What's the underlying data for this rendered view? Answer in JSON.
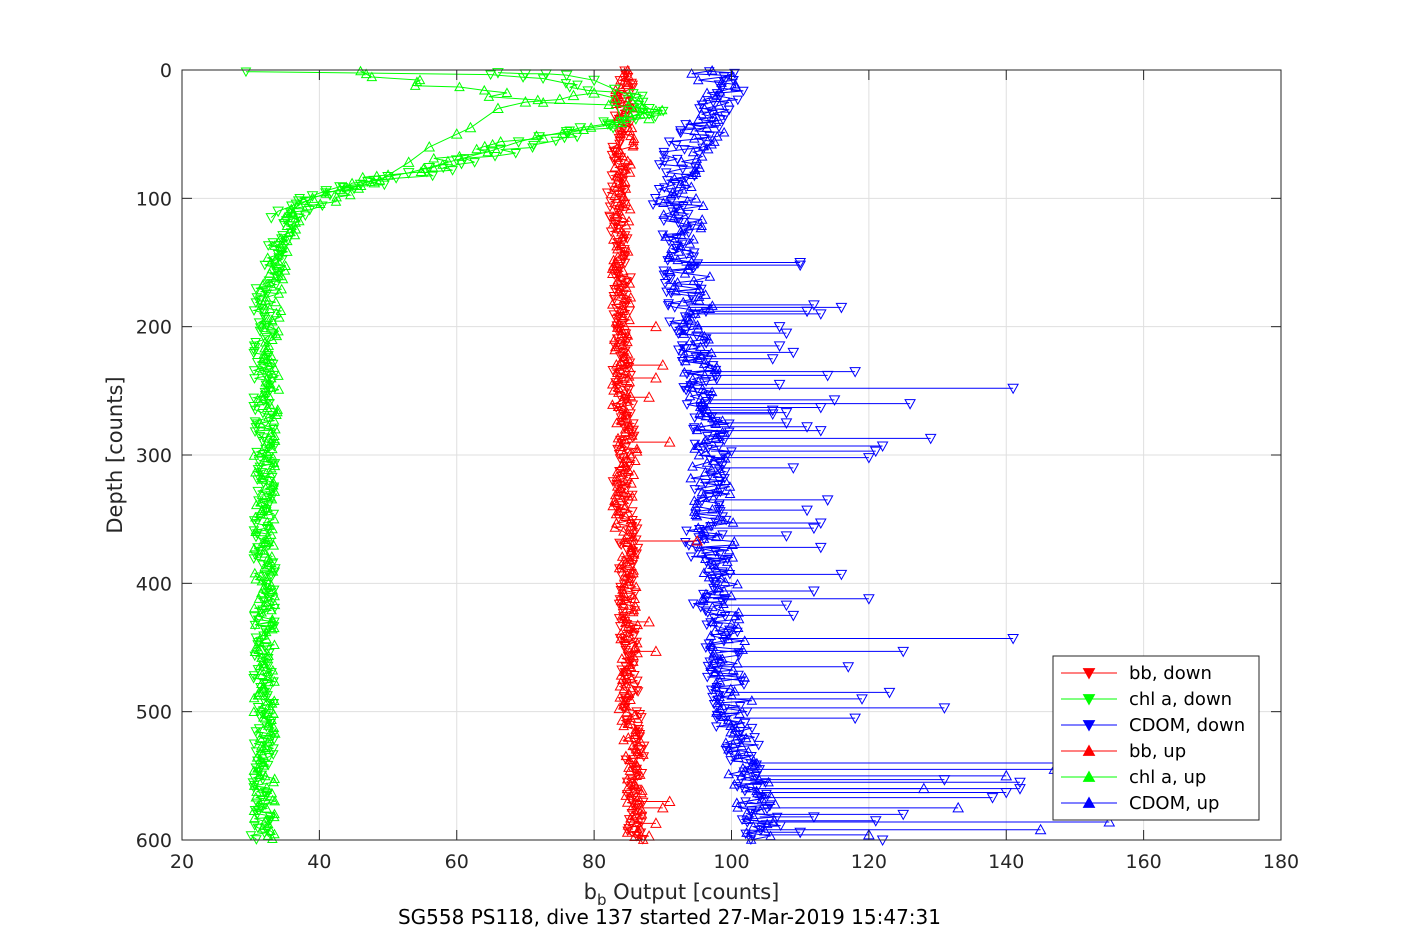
{
  "chart_data": {
    "type": "line",
    "title": "",
    "footer": "SG558 PS118, dive 137 started 27-Mar-2019 15:47:31",
    "xlabel_main": "b",
    "xlabel_sub": "b",
    "xlabel_rest": " Output [counts]",
    "ylabel": "Depth [counts]",
    "xlim": [
      20,
      180
    ],
    "ylim": [
      0,
      600
    ],
    "y_reversed": true,
    "grid": true,
    "x_ticks": [
      "20",
      "40",
      "60",
      "80",
      "100",
      "120",
      "140",
      "160",
      "180"
    ],
    "y_ticks": [
      "0",
      "100",
      "200",
      "300",
      "400",
      "500",
      "600"
    ],
    "legend_position": "bottom-right",
    "colors": {
      "bb": "#ff0000",
      "chl": "#00ff00",
      "cdom": "#0000ff",
      "axis": "#262626",
      "grid": "#dfdfdf"
    },
    "series": [
      {
        "name": "bb, down",
        "color": "#ff0000",
        "marker": "triangle-down",
        "points": [
          [
            84,
            0
          ],
          [
            85,
            10
          ],
          [
            84,
            25
          ],
          [
            84,
            40
          ],
          [
            83,
            60
          ],
          [
            84,
            80
          ],
          [
            83,
            100
          ],
          [
            84,
            130
          ],
          [
            84,
            160
          ],
          [
            84,
            200
          ],
          [
            84,
            240
          ],
          [
            85,
            280
          ],
          [
            84,
            320
          ],
          [
            85,
            360
          ],
          [
            85,
            400
          ],
          [
            85,
            440
          ],
          [
            85,
            480
          ],
          [
            86,
            520
          ],
          [
            86,
            560
          ],
          [
            86,
            600
          ]
        ]
      },
      {
        "name": "chl a, down",
        "color": "#00ff00",
        "marker": "triangle-down",
        "points": [
          [
            66,
            2
          ],
          [
            86,
            20
          ],
          [
            88,
            35
          ],
          [
            84,
            40
          ],
          [
            75,
            50
          ],
          [
            65,
            65
          ],
          [
            55,
            80
          ],
          [
            45,
            90
          ],
          [
            39,
            100
          ],
          [
            35,
            120
          ],
          [
            33,
            150
          ],
          [
            32,
            180
          ],
          [
            32,
            220
          ],
          [
            32,
            260
          ],
          [
            32,
            300
          ],
          [
            32,
            350
          ],
          [
            32,
            400
          ],
          [
            32,
            450
          ],
          [
            32,
            500
          ],
          [
            32,
            550
          ],
          [
            31,
            600
          ]
        ]
      },
      {
        "name": "CDOM, down",
        "color": "#0000ff",
        "marker": "triangle-down",
        "points": [
          [
            98,
            0
          ],
          [
            99,
            15
          ],
          [
            96,
            40
          ],
          [
            93,
            60
          ],
          [
            92,
            80
          ],
          [
            91,
            100
          ],
          [
            92,
            130
          ],
          [
            93,
            160
          ],
          [
            94,
            200
          ],
          [
            95,
            240
          ],
          [
            97,
            280
          ],
          [
            97,
            320
          ],
          [
            96,
            360
          ],
          [
            97,
            400
          ],
          [
            98,
            440
          ],
          [
            99,
            480
          ],
          [
            101,
            520
          ],
          [
            103,
            560
          ],
          [
            105,
            600
          ]
        ]
      },
      {
        "name": "bb, up",
        "color": "#ff0000",
        "marker": "triangle-up",
        "points": [
          [
            84,
            0
          ],
          [
            84,
            20
          ],
          [
            85,
            40
          ],
          [
            84,
            70
          ],
          [
            84,
            100
          ],
          [
            84,
            140
          ],
          [
            84,
            180
          ],
          [
            84,
            220
          ],
          [
            84,
            260
          ],
          [
            85,
            300
          ],
          [
            84,
            340
          ],
          [
            85,
            380
          ],
          [
            85,
            420
          ],
          [
            85,
            460
          ],
          [
            85,
            500
          ],
          [
            86,
            540
          ],
          [
            86,
            580
          ],
          [
            86,
            600
          ]
        ]
      },
      {
        "name": "chl a, up",
        "color": "#00ff00",
        "marker": "triangle-up",
        "points": [
          [
            46,
            0
          ],
          [
            55,
            10
          ],
          [
            62,
            15
          ],
          [
            70,
            22
          ],
          [
            80,
            26
          ],
          [
            89,
            32
          ],
          [
            85,
            40
          ],
          [
            78,
            45
          ],
          [
            68,
            55
          ],
          [
            58,
            70
          ],
          [
            48,
            85
          ],
          [
            40,
            100
          ],
          [
            36,
            115
          ],
          [
            34,
            140
          ],
          [
            33,
            170
          ],
          [
            33,
            200
          ],
          [
            33,
            240
          ],
          [
            32,
            280
          ],
          [
            32,
            320
          ],
          [
            32,
            380
          ],
          [
            32,
            440
          ],
          [
            32,
            500
          ],
          [
            32,
            560
          ],
          [
            32,
            600
          ]
        ]
      },
      {
        "name": "CDOM, up",
        "color": "#0000ff",
        "marker": "triangle-up",
        "points": [
          [
            97,
            0
          ],
          [
            98,
            15
          ],
          [
            97,
            35
          ],
          [
            95,
            60
          ],
          [
            94,
            80
          ],
          [
            93,
            100
          ],
          [
            93,
            130
          ],
          [
            94,
            160
          ],
          [
            95,
            200
          ],
          [
            95,
            240
          ],
          [
            96,
            280
          ],
          [
            97,
            320
          ],
          [
            98,
            360
          ],
          [
            98,
            400
          ],
          [
            99,
            440
          ],
          [
            100,
            480
          ],
          [
            101,
            520
          ],
          [
            103,
            560
          ],
          [
            104,
            590
          ],
          [
            104,
            600
          ]
        ]
      }
    ],
    "spikes": {
      "cdom_down": [
        [
          110,
          150
        ],
        [
          110,
          152
        ],
        [
          112,
          183
        ],
        [
          116,
          185
        ],
        [
          111,
          188
        ],
        [
          113,
          190
        ],
        [
          107,
          200
        ],
        [
          108,
          205
        ],
        [
          107,
          215
        ],
        [
          109,
          220
        ],
        [
          106,
          225
        ],
        [
          107,
          245
        ],
        [
          106,
          265
        ],
        [
          106,
          268
        ],
        [
          108,
          275
        ],
        [
          111,
          278
        ],
        [
          113,
          281
        ],
        [
          118,
          235
        ],
        [
          114,
          238
        ],
        [
          115,
          257
        ],
        [
          113,
          263
        ],
        [
          108,
          267
        ],
        [
          141,
          248
        ],
        [
          126,
          260
        ],
        [
          129,
          287
        ],
        [
          122,
          293
        ],
        [
          121,
          297
        ],
        [
          120,
          302
        ],
        [
          109,
          310
        ],
        [
          114,
          335
        ],
        [
          111,
          343
        ],
        [
          113,
          353
        ],
        [
          112,
          357
        ],
        [
          108,
          363
        ],
        [
          113,
          372
        ],
        [
          116,
          393
        ],
        [
          112,
          406
        ],
        [
          120,
          412
        ],
        [
          108,
          417
        ],
        [
          109,
          425
        ],
        [
          141,
          443
        ],
        [
          125,
          453
        ],
        [
          117,
          465
        ],
        [
          123,
          485
        ],
        [
          119,
          490
        ],
        [
          131,
          497
        ],
        [
          118,
          505
        ],
        [
          142,
          555
        ],
        [
          142,
          560
        ],
        [
          140,
          563
        ],
        [
          138,
          567
        ],
        [
          131,
          553
        ],
        [
          125,
          580
        ],
        [
          121,
          585
        ],
        [
          112,
          582
        ],
        [
          110,
          594
        ],
        [
          122,
          600
        ]
      ],
      "cdom_up": [
        [
          151,
          540
        ],
        [
          147,
          545
        ],
        [
          140,
          550
        ],
        [
          128,
          560
        ],
        [
          133,
          575
        ],
        [
          155,
          586
        ],
        [
          145,
          592
        ],
        [
          120,
          596
        ]
      ],
      "bb_up": [
        [
          95,
          367
        ],
        [
          91,
          290
        ],
        [
          89,
          200
        ],
        [
          89,
          240
        ],
        [
          90,
          230
        ],
        [
          88,
          255
        ],
        [
          88,
          430
        ],
        [
          89,
          453
        ],
        [
          91,
          570
        ],
        [
          90,
          575
        ],
        [
          89,
          587
        ],
        [
          88,
          597
        ]
      ],
      "chl_up": [
        [
          89,
          32
        ],
        [
          88,
          38
        ],
        [
          87,
          30
        ],
        [
          85,
          28
        ],
        [
          84,
          41
        ],
        [
          83,
          22
        ],
        [
          80,
          18
        ],
        [
          77,
          20
        ],
        [
          75,
          23
        ],
        [
          70,
          25
        ],
        [
          66,
          30
        ],
        [
          62,
          45
        ],
        [
          60,
          50
        ],
        [
          56,
          60
        ],
        [
          53,
          72
        ],
        [
          50,
          82
        ],
        [
          48,
          88
        ],
        [
          46,
          90
        ],
        [
          43,
          93
        ],
        [
          41,
          96
        ],
        [
          39,
          100
        ],
        [
          37,
          105
        ],
        [
          36,
          110
        ],
        [
          35,
          115
        ]
      ],
      "chl_down": [
        [
          66,
          2
        ],
        [
          70,
          3
        ],
        [
          73,
          3
        ],
        [
          76,
          4
        ],
        [
          80,
          8
        ],
        [
          83,
          15
        ],
        [
          86,
          22
        ],
        [
          88,
          30
        ],
        [
          86,
          35
        ],
        [
          84,
          40
        ],
        [
          82,
          42
        ],
        [
          78,
          45
        ],
        [
          76,
          48
        ],
        [
          72,
          52
        ],
        [
          69,
          56
        ],
        [
          65,
          63
        ],
        [
          60,
          70
        ],
        [
          56,
          76
        ],
        [
          53,
          80
        ],
        [
          50,
          83
        ],
        [
          48,
          86
        ],
        [
          46,
          89
        ],
        [
          43,
          91
        ],
        [
          41,
          94
        ],
        [
          39,
          98
        ],
        [
          37,
          102
        ],
        [
          36,
          106
        ],
        [
          34,
          110
        ],
        [
          33,
          115
        ]
      ]
    }
  }
}
